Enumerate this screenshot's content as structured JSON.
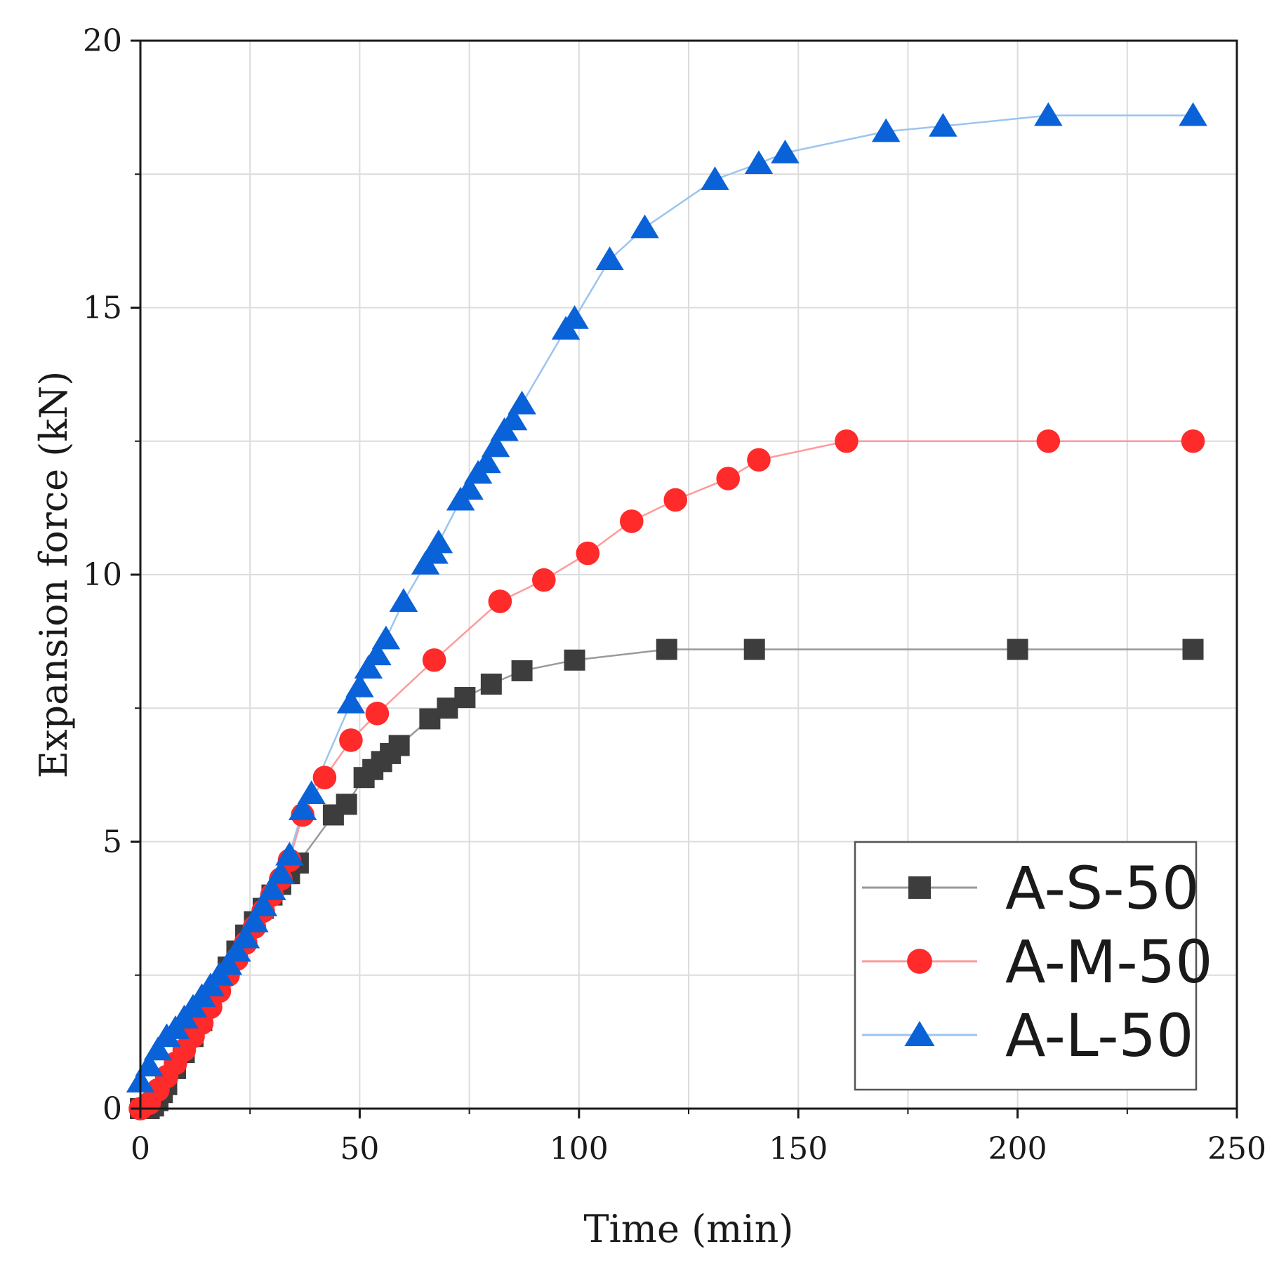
{
  "chart_data": {
    "type": "line",
    "title": "",
    "xlabel": "Time (min)",
    "ylabel": "Expansion force (kN)",
    "xlim": [
      0,
      250
    ],
    "ylim": [
      0,
      20
    ],
    "xticks": [
      0,
      50,
      100,
      150,
      200,
      250
    ],
    "yticks": [
      0,
      5,
      10,
      15,
      20
    ],
    "xtick_labels": [
      "0",
      "50",
      "100",
      "150",
      "200",
      "250"
    ],
    "ytick_labels": [
      "0",
      "5",
      "10",
      "15",
      "20"
    ],
    "grid": true,
    "legend_position": "bottom-right",
    "series": [
      {
        "name": "A-S-50",
        "marker": "square",
        "color": "#3d3d3d",
        "line_color": "#9a9a9a",
        "x": [
          0,
          1,
          2,
          3,
          4,
          5,
          6,
          8,
          10,
          12,
          14,
          16,
          18,
          20,
          22,
          24,
          26,
          28,
          30,
          32,
          34,
          36,
          44,
          47,
          51,
          53,
          55,
          57,
          59,
          66,
          70,
          74,
          80,
          87,
          99,
          120,
          140,
          200,
          240
        ],
        "y": [
          0,
          0,
          0,
          0.05,
          0.15,
          0.3,
          0.45,
          0.75,
          1.05,
          1.35,
          1.65,
          2.0,
          2.3,
          2.65,
          2.95,
          3.25,
          3.5,
          3.75,
          4.0,
          4.2,
          4.4,
          4.6,
          5.5,
          5.7,
          6.2,
          6.35,
          6.5,
          6.65,
          6.8,
          7.3,
          7.5,
          7.7,
          7.95,
          8.2,
          8.4,
          8.6,
          8.6,
          8.6,
          8.6
        ]
      },
      {
        "name": "A-M-50",
        "marker": "circle",
        "color": "#ff2a2a",
        "line_color": "#ff9a9a",
        "x": [
          0,
          2,
          4,
          6,
          8,
          10,
          12,
          14,
          16,
          18,
          20,
          22,
          24,
          26,
          28,
          30,
          32,
          34,
          37,
          42,
          48,
          54,
          67,
          82,
          92,
          102,
          112,
          122,
          134,
          141,
          161,
          207,
          240
        ],
        "y": [
          0,
          0.1,
          0.35,
          0.6,
          0.85,
          1.1,
          1.35,
          1.6,
          1.9,
          2.2,
          2.5,
          2.8,
          3.1,
          3.4,
          3.7,
          4.0,
          4.3,
          4.65,
          5.5,
          6.2,
          6.9,
          7.4,
          8.4,
          9.5,
          9.9,
          10.4,
          11.0,
          11.4,
          11.8,
          12.15,
          12.5,
          12.5,
          12.5
        ]
      },
      {
        "name": "A-L-50",
        "marker": "triangle",
        "color": "#0a62d8",
        "line_color": "#9cc4ee",
        "x": [
          0,
          2,
          4,
          6,
          8,
          10,
          12,
          14,
          16,
          18,
          20,
          22,
          24,
          26,
          28,
          30,
          32,
          34,
          37,
          39,
          48,
          50,
          52,
          54,
          56,
          60,
          65,
          67,
          68,
          73,
          75,
          77,
          79,
          81,
          83,
          85,
          87,
          97,
          99,
          107,
          115,
          131,
          141,
          147,
          170,
          183,
          207,
          240
        ],
        "y": [
          0.5,
          0.8,
          1.1,
          1.35,
          1.5,
          1.7,
          1.9,
          2.1,
          2.3,
          2.5,
          2.7,
          2.95,
          3.2,
          3.5,
          3.8,
          4.1,
          4.4,
          4.75,
          5.6,
          5.9,
          7.6,
          7.9,
          8.25,
          8.5,
          8.8,
          9.5,
          10.2,
          10.4,
          10.6,
          11.4,
          11.6,
          11.9,
          12.1,
          12.4,
          12.7,
          12.9,
          13.2,
          14.6,
          14.8,
          15.9,
          16.5,
          17.4,
          17.7,
          17.9,
          18.3,
          18.4,
          18.6,
          18.6
        ]
      }
    ]
  }
}
